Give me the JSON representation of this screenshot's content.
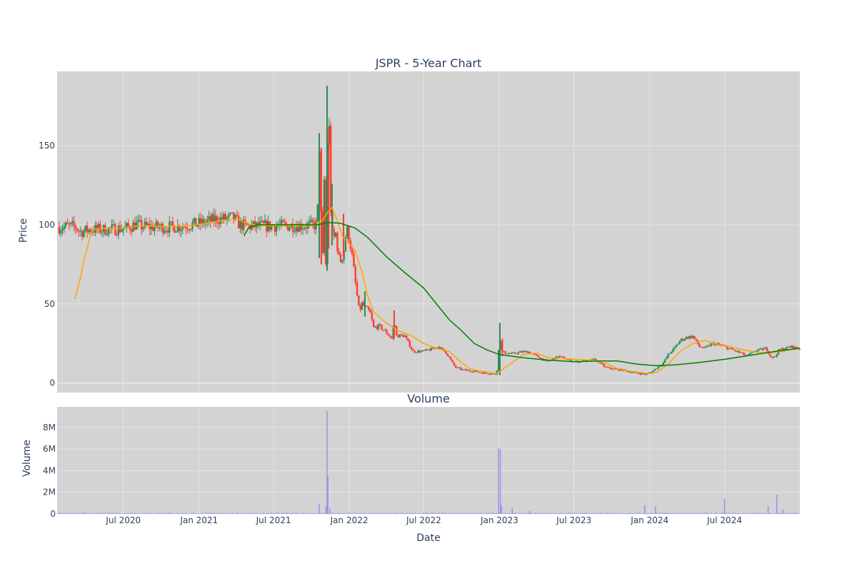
{
  "chart_data": [
    {
      "type": "candlestick",
      "title": "JSPR - 5-Year Chart",
      "ylabel": "Price",
      "ylim": [
        -6,
        197
      ],
      "y_ticks": [
        0,
        50,
        100,
        150
      ],
      "x_range": [
        "2020-01-22",
        "2024-12-31"
      ],
      "grid": true,
      "colors": {
        "up": "#2e8b57",
        "down": "#ff3b30",
        "ma50": "#ffa500",
        "ma200": "#008000",
        "plot_bg": "#d3d3d3",
        "grid": "#e6e6e6"
      },
      "price": [
        [
          "2020-01-27",
          98.5
        ],
        [
          "2020-02-15",
          98.9
        ],
        [
          "2020-03-05",
          98.8
        ],
        [
          "2020-03-20",
          95.5
        ],
        [
          "2020-04-01",
          96.5
        ],
        [
          "2020-04-15",
          97.2
        ],
        [
          "2020-05-15",
          97.0
        ],
        [
          "2020-06-15",
          97.4
        ],
        [
          "2020-07-10",
          98.0
        ],
        [
          "2020-08-01",
          100.5
        ],
        [
          "2020-08-15",
          99.0
        ],
        [
          "2020-09-15",
          98.6
        ],
        [
          "2020-10-15",
          98.5
        ],
        [
          "2020-11-15",
          99.0
        ],
        [
          "2020-12-15",
          100.2
        ],
        [
          "2021-01-15",
          101.5
        ],
        [
          "2021-02-10",
          103.5
        ],
        [
          "2021-03-01",
          103.8
        ],
        [
          "2021-03-25",
          104.5
        ],
        [
          "2021-04-10",
          100.0
        ],
        [
          "2021-05-01",
          99.0
        ],
        [
          "2021-06-01",
          99.3
        ],
        [
          "2021-07-01",
          99.3
        ],
        [
          "2021-08-01",
          99.4
        ],
        [
          "2021-09-01",
          99.5
        ],
        [
          "2021-10-01",
          99.6
        ],
        [
          "2021-10-15",
          100.0
        ],
        [
          "2021-10-20",
          150.0
        ],
        [
          "2021-10-25",
          95.0
        ],
        [
          "2021-10-28",
          80.0
        ],
        [
          "2021-11-02",
          140.0
        ],
        [
          "2021-11-05",
          75.0
        ],
        [
          "2021-11-08",
          185.0
        ],
        [
          "2021-11-10",
          120.0
        ],
        [
          "2021-11-13",
          160.0
        ],
        [
          "2021-11-17",
          110.0
        ],
        [
          "2021-11-22",
          90.0
        ],
        [
          "2021-11-30",
          95.0
        ],
        [
          "2021-12-05",
          80.0
        ],
        [
          "2021-12-12",
          77.0
        ],
        [
          "2021-12-20",
          85.0
        ],
        [
          "2021-12-25",
          98.0
        ],
        [
          "2022-01-01",
          92.0
        ],
        [
          "2022-01-08",
          80.0
        ],
        [
          "2022-01-15",
          65.0
        ],
        [
          "2022-01-20",
          55.0
        ],
        [
          "2022-01-25",
          45.0
        ],
        [
          "2022-02-01",
          50.0
        ],
        [
          "2022-02-10",
          47.0
        ],
        [
          "2022-02-20",
          45.0
        ],
        [
          "2022-03-01",
          35.0
        ],
        [
          "2022-03-15",
          36.0
        ],
        [
          "2022-04-01",
          32.0
        ],
        [
          "2022-04-15",
          28.0
        ],
        [
          "2022-04-20",
          40.0
        ],
        [
          "2022-04-25",
          30.0
        ],
        [
          "2022-05-15",
          30.0
        ],
        [
          "2022-05-25",
          25.0
        ],
        [
          "2022-06-05",
          20.0
        ],
        [
          "2022-06-25",
          20.0
        ],
        [
          "2022-07-15",
          21.0
        ],
        [
          "2022-08-05",
          23.0
        ],
        [
          "2022-08-25",
          19.0
        ],
        [
          "2022-09-15",
          10.0
        ],
        [
          "2022-10-01",
          8.5
        ],
        [
          "2022-10-15",
          8.0
        ],
        [
          "2022-11-01",
          7.5
        ],
        [
          "2022-11-20",
          6.5
        ],
        [
          "2022-12-10",
          6.0
        ],
        [
          "2022-12-25",
          5.5
        ],
        [
          "2023-01-02",
          30.0
        ],
        [
          "2023-01-06",
          20.0
        ],
        [
          "2023-01-15",
          19.0
        ],
        [
          "2023-02-01",
          18.5
        ],
        [
          "2023-02-20",
          19.5
        ],
        [
          "2023-03-10",
          20.0
        ],
        [
          "2023-03-25",
          18.0
        ],
        [
          "2023-04-10",
          16.0
        ],
        [
          "2023-04-25",
          13.5
        ],
        [
          "2023-05-10",
          15.0
        ],
        [
          "2023-05-25",
          17.0
        ],
        [
          "2023-06-10",
          15.5
        ],
        [
          "2023-06-25",
          14.0
        ],
        [
          "2023-07-10",
          13.5
        ],
        [
          "2023-08-01",
          14.0
        ],
        [
          "2023-08-20",
          15.0
        ],
        [
          "2023-09-01",
          13.0
        ],
        [
          "2023-09-15",
          10.0
        ],
        [
          "2023-10-01",
          9.0
        ],
        [
          "2023-10-20",
          8.5
        ],
        [
          "2023-11-10",
          7.5
        ],
        [
          "2023-11-25",
          6.5
        ],
        [
          "2023-12-10",
          6.0
        ],
        [
          "2023-12-25",
          5.5
        ],
        [
          "2024-01-10",
          8.0
        ],
        [
          "2024-01-20",
          10.0
        ],
        [
          "2024-02-01",
          12.0
        ],
        [
          "2024-02-15",
          18.0
        ],
        [
          "2024-03-01",
          22.0
        ],
        [
          "2024-03-15",
          27.0
        ],
        [
          "2024-04-01",
          29.0
        ],
        [
          "2024-04-15",
          29.5
        ],
        [
          "2024-05-01",
          23.0
        ],
        [
          "2024-05-15",
          22.0
        ],
        [
          "2024-06-01",
          25.0
        ],
        [
          "2024-06-20",
          24.0
        ],
        [
          "2024-07-05",
          22.5
        ],
        [
          "2024-07-20",
          21.0
        ],
        [
          "2024-08-10",
          19.0
        ],
        [
          "2024-08-25",
          17.0
        ],
        [
          "2024-09-10",
          20.0
        ],
        [
          "2024-09-25",
          21.0
        ],
        [
          "2024-10-10",
          22.0
        ],
        [
          "2024-10-20",
          17.0
        ],
        [
          "2024-10-30",
          16.0
        ],
        [
          "2024-11-10",
          21.0
        ],
        [
          "2024-11-25",
          22.0
        ],
        [
          "2024-12-10",
          23.0
        ],
        [
          "2024-12-31",
          21.5
        ]
      ],
      "spikes": [
        [
          "2021-10-20",
          79,
          158
        ],
        [
          "2021-10-25",
          75,
          148
        ],
        [
          "2021-11-08",
          71,
          188
        ],
        [
          "2021-11-12",
          85,
          162
        ],
        [
          "2021-11-20",
          87,
          126
        ],
        [
          "2021-12-18",
          80,
          107
        ],
        [
          "2022-02-08",
          42,
          58
        ],
        [
          "2022-04-20",
          28,
          46
        ],
        [
          "2023-01-02",
          5,
          38
        ],
        [
          "2023-01-08",
          17,
          28
        ]
      ],
      "ma50": [
        [
          "2020-03-05",
          53
        ],
        [
          "2020-03-12",
          60
        ],
        [
          "2020-03-20",
          68
        ],
        [
          "2020-03-25",
          75
        ],
        [
          "2020-04-05",
          86
        ],
        [
          "2020-04-12",
          94
        ],
        [
          "2020-04-20",
          97.5
        ],
        [
          "2020-05-15",
          97.6
        ],
        [
          "2020-06-15",
          97.6
        ],
        [
          "2020-07-05",
          98.2
        ],
        [
          "2020-08-10",
          99.5
        ],
        [
          "2020-10-01",
          99.0
        ],
        [
          "2020-12-01",
          99.2
        ],
        [
          "2021-01-20",
          101.0
        ],
        [
          "2021-03-05",
          103.0
        ],
        [
          "2021-04-05",
          103.5
        ],
        [
          "2021-05-05",
          100.5
        ],
        [
          "2021-06-01",
          99.5
        ],
        [
          "2021-08-01",
          99.4
        ],
        [
          "2021-10-10",
          99.6
        ],
        [
          "2021-10-28",
          103.0
        ],
        [
          "2021-11-10",
          108.0
        ],
        [
          "2021-11-20",
          111.0
        ],
        [
          "2021-12-01",
          104.0
        ],
        [
          "2021-12-15",
          93.0
        ],
        [
          "2022-01-01",
          88.0
        ],
        [
          "2022-01-15",
          84.0
        ],
        [
          "2022-02-01",
          70.0
        ],
        [
          "2022-02-15",
          55.0
        ],
        [
          "2022-03-01",
          45.0
        ],
        [
          "2022-04-01",
          38.0
        ],
        [
          "2022-05-01",
          33.0
        ],
        [
          "2022-06-01",
          30.0
        ],
        [
          "2022-07-01",
          25.0
        ],
        [
          "2022-08-01",
          22.0
        ],
        [
          "2022-09-01",
          20.0
        ],
        [
          "2022-10-01",
          13.0
        ],
        [
          "2022-10-20",
          9.0
        ],
        [
          "2022-11-20",
          7.5
        ],
        [
          "2022-12-25",
          6.0
        ],
        [
          "2023-02-01",
          13.0
        ],
        [
          "2023-02-28",
          18.0
        ],
        [
          "2023-03-31",
          19.0
        ],
        [
          "2023-05-01",
          16.0
        ],
        [
          "2023-06-01",
          15.5
        ],
        [
          "2023-07-01",
          15.0
        ],
        [
          "2023-08-15",
          14.5
        ],
        [
          "2023-09-15",
          12.5
        ],
        [
          "2023-10-15",
          9.0
        ],
        [
          "2023-11-15",
          7.5
        ],
        [
          "2023-12-31",
          6.0
        ],
        [
          "2024-01-20",
          7.0
        ],
        [
          "2024-02-15",
          12.0
        ],
        [
          "2024-03-15",
          20.0
        ],
        [
          "2024-04-15",
          25.0
        ],
        [
          "2024-05-15",
          27.0
        ],
        [
          "2024-06-15",
          24.0
        ],
        [
          "2024-07-15",
          23.0
        ],
        [
          "2024-08-15",
          21.0
        ],
        [
          "2024-09-15",
          19.5
        ],
        [
          "2024-10-15",
          19.0
        ],
        [
          "2024-11-15",
          20.0
        ],
        [
          "2024-12-31",
          22.0
        ]
      ],
      "ma200": [
        [
          "2021-04-20",
          93.0
        ],
        [
          "2021-05-01",
          98.0
        ],
        [
          "2021-05-20",
          100.0
        ],
        [
          "2021-10-15",
          100.0
        ],
        [
          "2021-11-10",
          101.5
        ],
        [
          "2021-12-10",
          101.0
        ],
        [
          "2022-01-15",
          98.0
        ],
        [
          "2022-02-15",
          92.0
        ],
        [
          "2022-04-01",
          80.0
        ],
        [
          "2022-05-15",
          70.0
        ],
        [
          "2022-07-01",
          60.0
        ],
        [
          "2022-08-01",
          50.0
        ],
        [
          "2022-09-01",
          40.0
        ],
        [
          "2022-10-01",
          33.0
        ],
        [
          "2022-11-01",
          25.0
        ],
        [
          "2022-12-01",
          21.0
        ],
        [
          "2023-01-01",
          18.0
        ],
        [
          "2023-03-01",
          16.0
        ],
        [
          "2023-05-01",
          14.5
        ],
        [
          "2023-07-01",
          13.5
        ],
        [
          "2023-09-01",
          14.0
        ],
        [
          "2023-10-15",
          14.0
        ],
        [
          "2023-12-01",
          12.0
        ],
        [
          "2024-01-15",
          11.0
        ],
        [
          "2024-03-01",
          11.5
        ],
        [
          "2024-05-01",
          13.0
        ],
        [
          "2024-07-01",
          15.0
        ],
        [
          "2024-09-01",
          17.5
        ],
        [
          "2024-11-01",
          20.0
        ],
        [
          "2024-12-31",
          22.0
        ]
      ]
    },
    {
      "type": "bar",
      "title": "Volume",
      "ylabel": "Volume",
      "xlabel": "Date",
      "ylim": [
        0,
        9900000
      ],
      "y_ticks": [
        0,
        2000000,
        4000000,
        6000000,
        8000000
      ],
      "y_tick_labels": [
        "0",
        "2M",
        "4M",
        "6M",
        "8M"
      ],
      "x_ticks": [
        "2020-07-01",
        "2021-01-01",
        "2021-07-01",
        "2022-01-01",
        "2022-07-01",
        "2023-01-01",
        "2023-07-01",
        "2024-01-01",
        "2024-07-01"
      ],
      "x_tick_labels": [
        "Jul 2020",
        "Jan 2021",
        "Jul 2021",
        "Jan 2022",
        "Jul 2022",
        "Jan 2023",
        "Jul 2023",
        "Jan 2024",
        "Jul 2024"
      ],
      "colors": {
        "bar": "#9b93e8",
        "plot_bg": "#d3d3d3",
        "grid": "#e6e6e6"
      },
      "baseline": 80000,
      "spikes": [
        [
          "2021-10-20",
          900000
        ],
        [
          "2021-11-05",
          700000
        ],
        [
          "2021-11-08",
          9500000
        ],
        [
          "2021-11-10",
          3500000
        ],
        [
          "2021-11-15",
          500000
        ],
        [
          "2022-12-30",
          6100000
        ],
        [
          "2023-01-03",
          6000000
        ],
        [
          "2023-01-06",
          800000
        ],
        [
          "2023-02-01",
          600000
        ],
        [
          "2023-03-15",
          300000
        ],
        [
          "2023-12-20",
          800000
        ],
        [
          "2024-01-15",
          700000
        ],
        [
          "2024-07-01",
          1400000
        ],
        [
          "2024-10-15",
          700000
        ],
        [
          "2024-11-05",
          1800000
        ],
        [
          "2024-11-20",
          400000
        ]
      ]
    }
  ]
}
